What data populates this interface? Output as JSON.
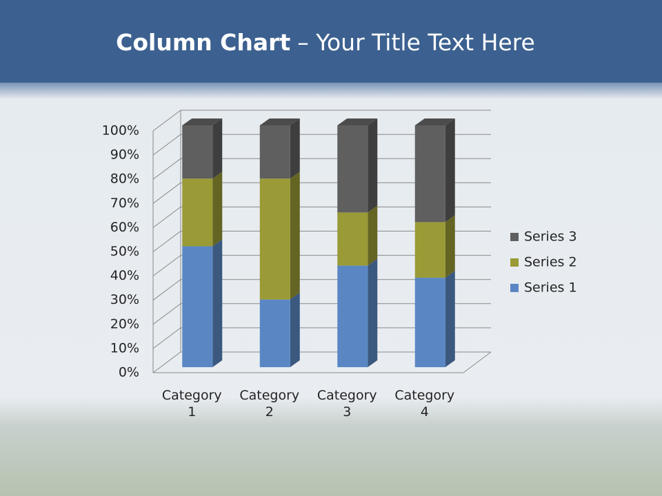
{
  "chart_data": {
    "type": "stacked_bar_3d",
    "title": [
      "Column Chart",
      "– Your Title Text Here"
    ],
    "categories": [
      "Category 1",
      "Category 2",
      "Category 3",
      "Category 4"
    ],
    "series": [
      {
        "name": "Series 1",
        "color": "#5a87c4",
        "values": [
          50,
          28,
          42,
          37
        ]
      },
      {
        "name": "Series 2",
        "color": "#9a9a36",
        "values": [
          28,
          50,
          22,
          23
        ]
      },
      {
        "name": "Series 3",
        "color": "#5f5f5f",
        "values": [
          22,
          22,
          36,
          40
        ]
      }
    ],
    "ylim": [
      0,
      100
    ],
    "yticks": [
      {
        "value": 0,
        "label": "0%"
      },
      {
        "value": 10,
        "label": "10%"
      },
      {
        "value": 20,
        "label": "20%"
      },
      {
        "value": 30,
        "label": "30%"
      },
      {
        "value": 40,
        "label": "40%"
      },
      {
        "value": 50,
        "label": "50%"
      },
      {
        "value": 60,
        "label": "60%"
      },
      {
        "value": 70,
        "label": "70%"
      },
      {
        "value": 80,
        "label": "80%"
      },
      {
        "value": 90,
        "label": "90%"
      },
      {
        "value": 100,
        "label": "100%"
      }
    ],
    "grid": true,
    "legend": "right"
  }
}
